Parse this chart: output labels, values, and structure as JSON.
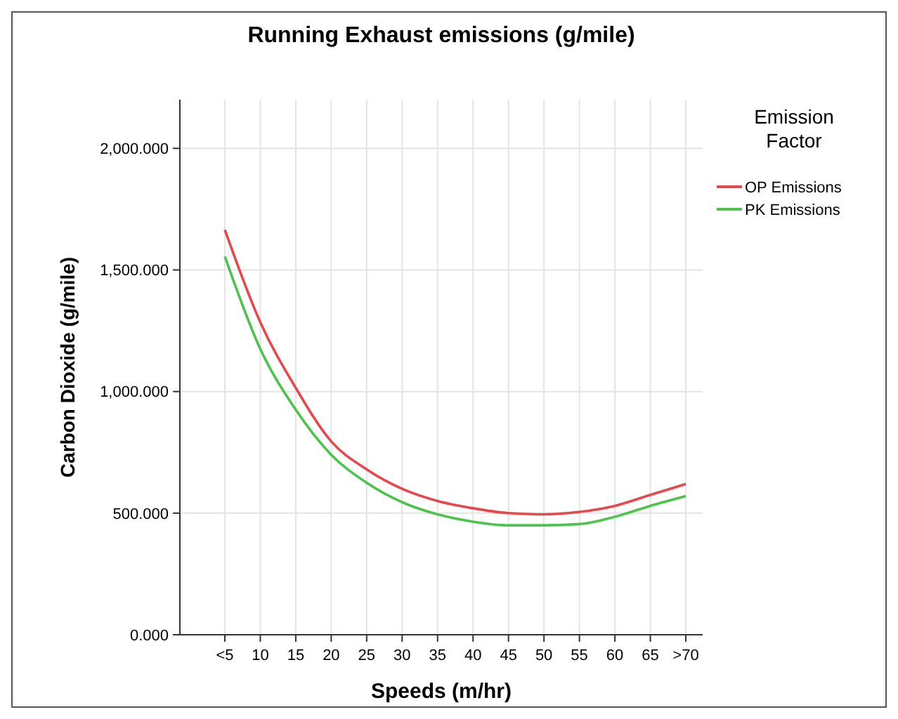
{
  "chart_data": {
    "type": "line",
    "title": "Running Exhaust emissions (g/mile)",
    "xlabel": "Speeds (m/hr)",
    "ylabel": "Carbon Dioxide (g/mile)",
    "legend_title": "Emission Factor",
    "categories": [
      "<5",
      "10",
      "15",
      "20",
      "25",
      "30",
      "35",
      "40",
      "45",
      "50",
      "55",
      "60",
      "65",
      ">70"
    ],
    "series": [
      {
        "name": "OP Emissions",
        "color": "#e8474c",
        "values": [
          1665,
          1285,
          1015,
          795,
          680,
          600,
          550,
          520,
          500,
          495,
          505,
          530,
          575,
          620
        ]
      },
      {
        "name": "PK Emissions",
        "color": "#4cc44c",
        "values": [
          1555,
          1175,
          925,
          740,
          625,
          545,
          495,
          465,
          450,
          450,
          455,
          485,
          530,
          570
        ]
      }
    ],
    "ylim": [
      0,
      2200
    ],
    "yticks": [
      {
        "value": 0,
        "label": "0.000"
      },
      {
        "value": 500,
        "label": "500.000"
      },
      {
        "value": 1000,
        "label": "1,000.000"
      },
      {
        "value": 1500,
        "label": "1,500.000"
      },
      {
        "value": 2000,
        "label": "2,000.000"
      }
    ],
    "grid": true,
    "legend": "right",
    "marker": "none",
    "line_style": "solid"
  }
}
